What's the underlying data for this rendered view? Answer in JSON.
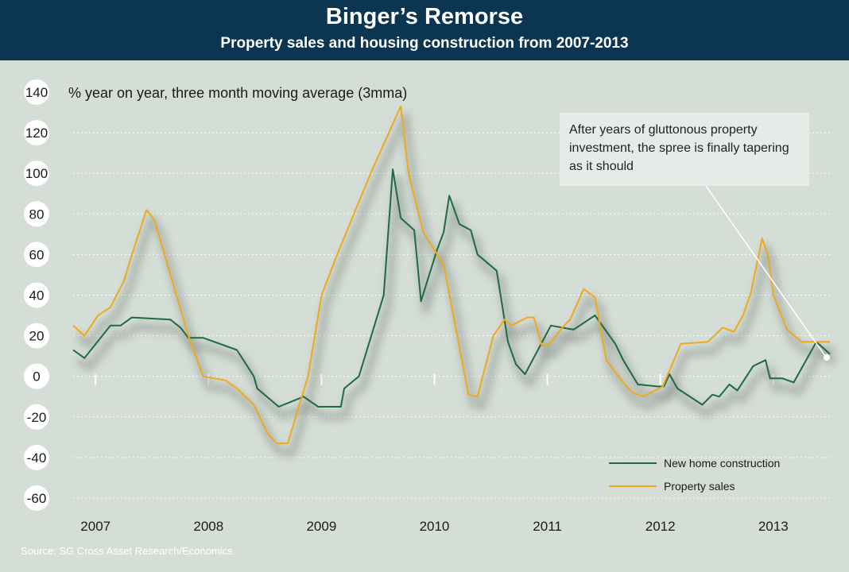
{
  "title": "Binger’s Remorse",
  "subtitle": "Property sales and housing construction from 2007-2013",
  "source": "Source: SG Cross Asset Research/Economics",
  "annotation": "After years of gluttonous  property investment,  the spree is finally tapering as it should",
  "colors": {
    "header_bg": "#0b3550",
    "plot_bg": "#d4ddd6",
    "construction": "#1e6b3e",
    "sales": "#f0a81c"
  },
  "chart_data": {
    "type": "line",
    "ylabel": "% year on year, three month moving average (3mma)",
    "ylim": [
      -60,
      140
    ],
    "yticks": [
      140,
      120,
      100,
      80,
      60,
      40,
      20,
      0,
      -20,
      -40,
      -60
    ],
    "xlim": [
      2006.9,
      2013.6
    ],
    "xticks": [
      {
        "label": "2007",
        "x": 2007
      },
      {
        "label": "2008",
        "x": 2008
      },
      {
        "label": "2009",
        "x": 2009
      },
      {
        "label": "2010",
        "x": 2010
      },
      {
        "label": "2011",
        "x": 2011
      },
      {
        "label": "2012",
        "x": 2012
      },
      {
        "label": "2013",
        "x": 2013
      }
    ],
    "grid": "horizontal dotted",
    "legend_position": "bottom-right",
    "series": [
      {
        "name": "New home construction",
        "color": "#1e6b3e",
        "x": [
          2006.9,
          2007.0,
          2007.23,
          2007.32,
          2007.42,
          2007.76,
          2007.85,
          2007.92,
          2007.97,
          2008.05,
          2008.35,
          2008.5,
          2008.53,
          2008.72,
          2008.94,
          2009.07,
          2009.27,
          2009.3,
          2009.43,
          2009.65,
          2009.73,
          2009.8,
          2009.92,
          2009.98,
          2010.12,
          2010.18,
          2010.23,
          2010.32,
          2010.42,
          2010.48,
          2010.65,
          2010.75,
          2010.82,
          2010.9,
          2011.13,
          2011.33,
          2011.52,
          2011.7,
          2011.77,
          2011.9,
          2012.08,
          2012.13,
          2012.18,
          2012.25,
          2012.47,
          2012.56,
          2012.62,
          2012.71,
          2012.78,
          2012.92,
          2013.03,
          2013.07,
          2013.18,
          2013.28,
          2013.48,
          2013.6
        ],
        "values": [
          13,
          9,
          25,
          25,
          29,
          28,
          24,
          19,
          19,
          19,
          13,
          0,
          -6,
          -15,
          -10,
          -15,
          -15,
          -6,
          0,
          40,
          102,
          78,
          72,
          37,
          62,
          71,
          89,
          75,
          72,
          60,
          52,
          17,
          6,
          1,
          25,
          23,
          30,
          16,
          8,
          -4,
          -5,
          -5,
          1,
          -6,
          -14,
          -9,
          -10,
          -4,
          -7,
          5,
          8,
          -1,
          -1,
          -3,
          17,
          11
        ]
      },
      {
        "name": "Property sales",
        "color": "#f0a81c",
        "x": [
          2006.9,
          2007.0,
          2007.12,
          2007.23,
          2007.35,
          2007.42,
          2007.55,
          2007.62,
          2007.92,
          2008.05,
          2008.25,
          2008.35,
          2008.5,
          2008.62,
          2008.7,
          2008.8,
          2008.98,
          2009.1,
          2009.23,
          2009.43,
          2009.55,
          2009.8,
          2009.87,
          2010.0,
          2010.18,
          2010.4,
          2010.48,
          2010.62,
          2010.72,
          2010.78,
          2010.92,
          2010.98,
          2011.05,
          2011.12,
          2011.23,
          2011.3,
          2011.42,
          2011.52,
          2011.62,
          2011.77,
          2011.85,
          2011.95,
          2012.12,
          2012.28,
          2012.52,
          2012.65,
          2012.75,
          2012.83,
          2012.9,
          2013.0,
          2013.05,
          2013.1,
          2013.22,
          2013.35,
          2013.48,
          2013.6
        ],
        "values": [
          25,
          20,
          30,
          34,
          47,
          60,
          82,
          77,
          20,
          0,
          -2,
          -6,
          -14,
          -28,
          -33,
          -33,
          0,
          40,
          59,
          86,
          102,
          133,
          100,
          71,
          55,
          -9,
          -10,
          20,
          28,
          25,
          29,
          29,
          15,
          16,
          24,
          28,
          43,
          39,
          8,
          -3,
          -8,
          -10,
          -5,
          16,
          17,
          24,
          22,
          30,
          41,
          68,
          60,
          40,
          23,
          17,
          17,
          17
        ]
      }
    ]
  }
}
